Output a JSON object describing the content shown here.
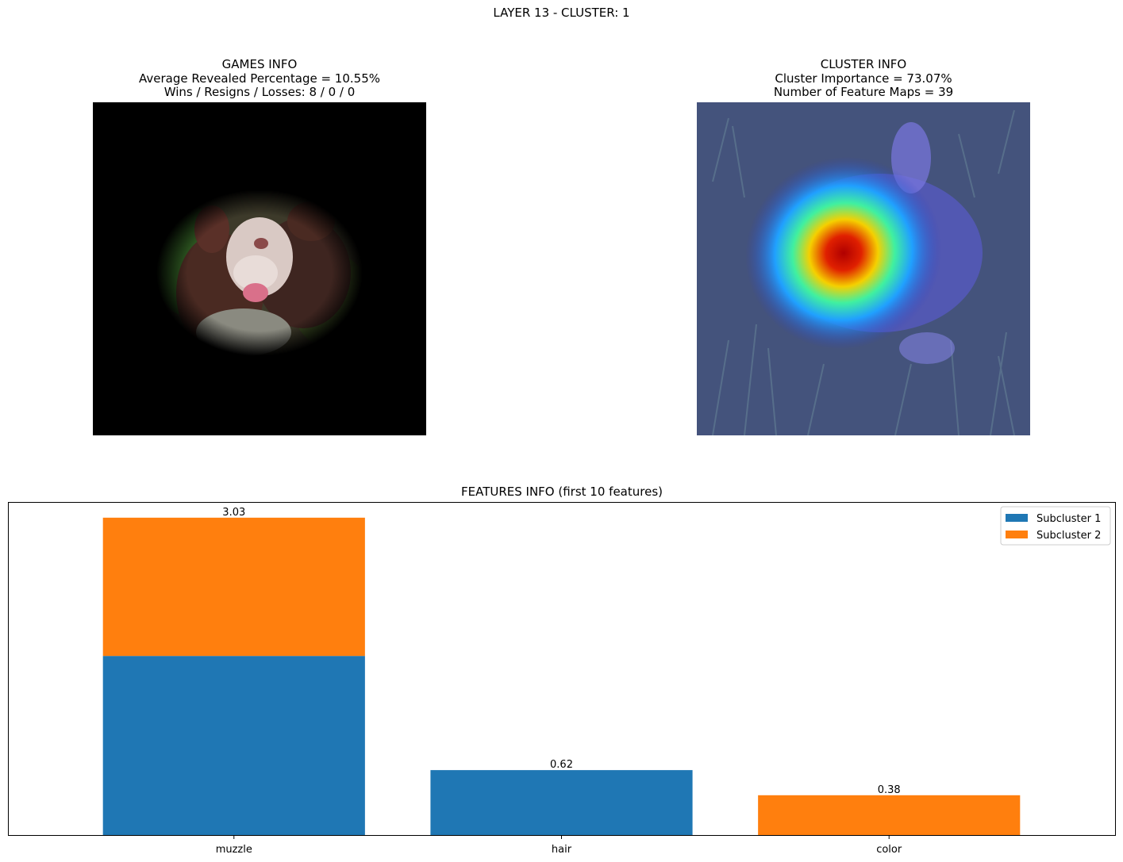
{
  "figure": {
    "suptitle": "LAYER 13 - CLUSTER: 1"
  },
  "games_info": {
    "title": "GAMES INFO",
    "line1": "Average Revealed Percentage = 10.55%",
    "line2": "Wins / Resigns / Losses: 8 / 0 / 0"
  },
  "cluster_info": {
    "title": "CLUSTER INFO",
    "line1": "Cluster Importance = 73.07%",
    "line2": "Number of Feature Maps = 39"
  },
  "colors": {
    "subcluster_1": "#1f77b4",
    "subcluster_2": "#ff7f0e"
  },
  "chart_data": {
    "type": "bar",
    "stacked": true,
    "title": "FEATURES INFO (first 10 features)",
    "categories": [
      "muzzle",
      "hair",
      "color"
    ],
    "series": [
      {
        "name": "Subcluster 1",
        "values": [
          1.71,
          0.62,
          0
        ]
      },
      {
        "name": "Subcluster 2",
        "values": [
          1.32,
          0,
          0.38
        ]
      }
    ],
    "totals": [
      3.03,
      0.62,
      0.38
    ],
    "total_labels": [
      "3.03",
      "0.62",
      "0.38"
    ],
    "ylim": [
      0,
      3.18
    ],
    "y_ticks_shown": false,
    "legend_position": "top-right",
    "grid": false
  }
}
